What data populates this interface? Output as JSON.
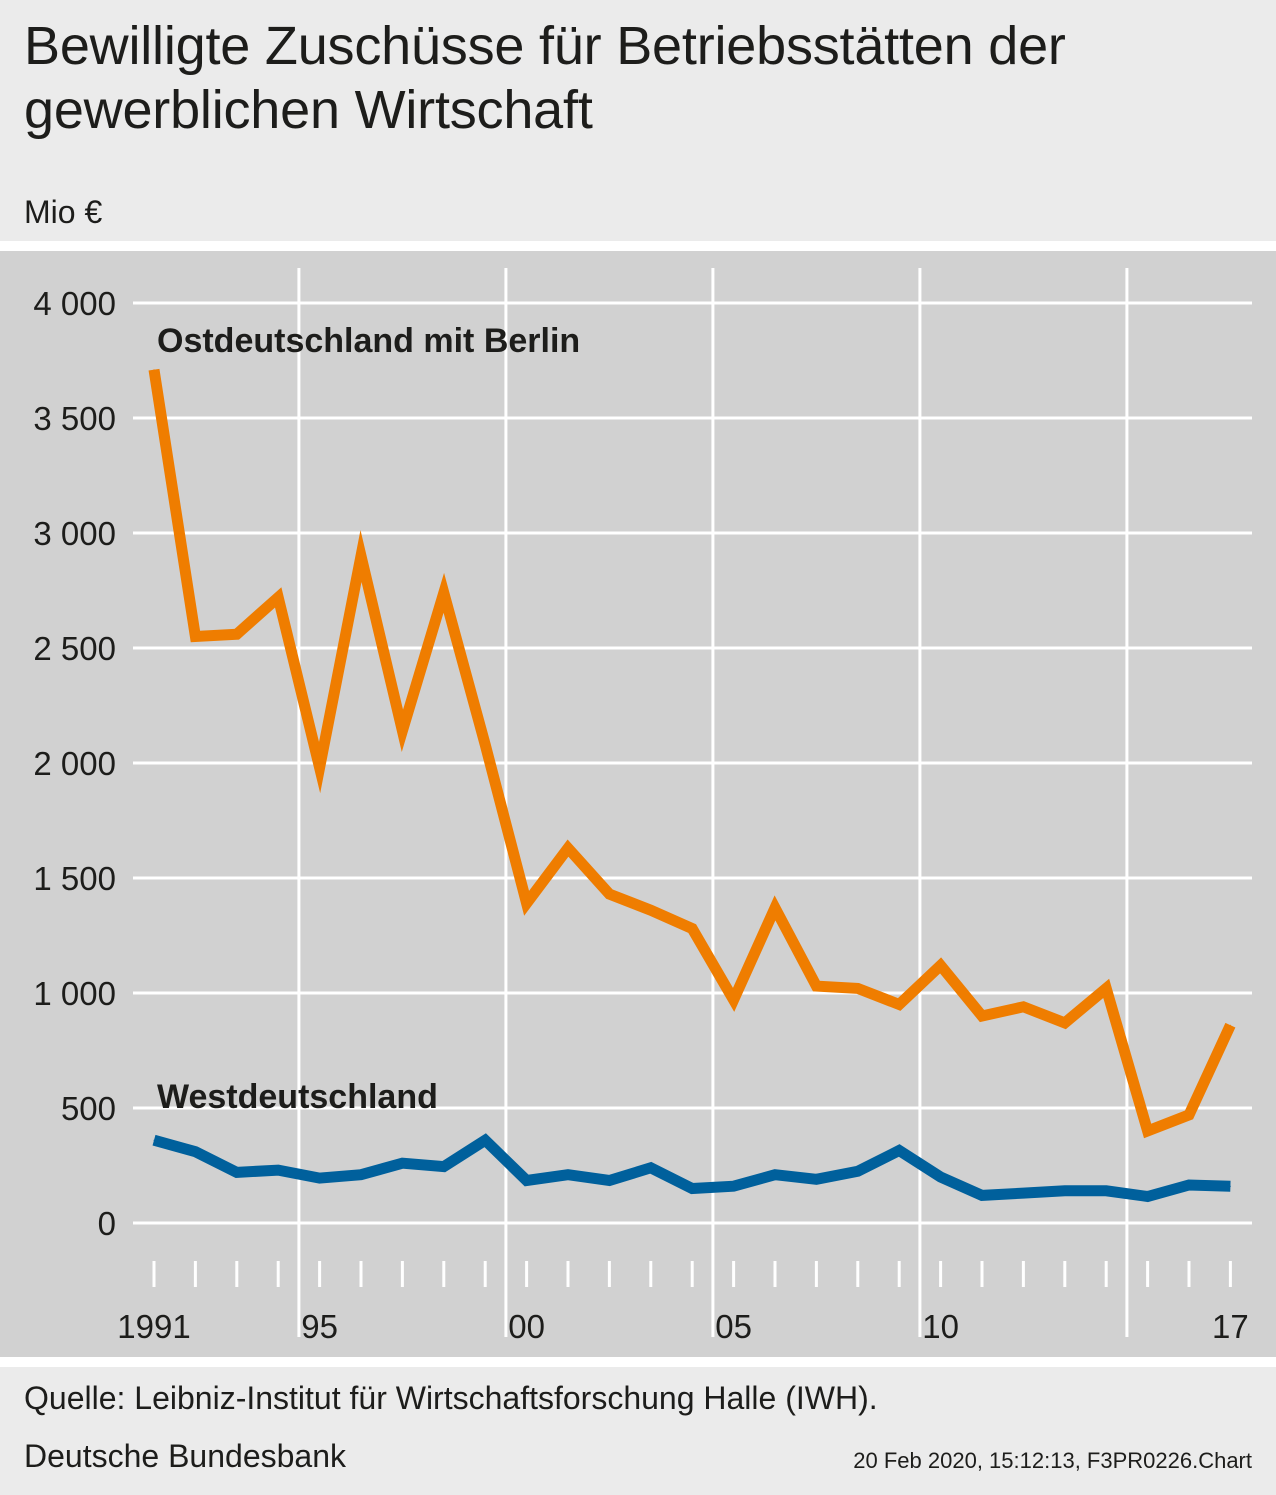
{
  "header": {
    "title": "Bewilligte Zuschüsse für Betriebsstätten der gewerblichen Wirtschaft",
    "unit": "Mio €"
  },
  "footer": {
    "source": "Quelle: Leibniz-Institut für Wirtschaftsforschung Halle (IWH).",
    "publisher": "Deutsche Bundesbank",
    "stamp": "20 Feb 2020, 15:12:13, F3PR0226.Chart"
  },
  "colors": {
    "background": "#ebebeb",
    "plot_background": "#d1d1d1",
    "grid": "#ffffff",
    "east": "#ef7d00",
    "west": "#00609c"
  },
  "chart_data": {
    "type": "line",
    "title": "Bewilligte Zuschüsse für Betriebsstätten der gewerblichen Wirtschaft",
    "ylabel": "Mio €",
    "xlabel": "",
    "ylim": [
      0,
      4000
    ],
    "xlim": [
      1990.5,
      2017.5
    ],
    "y_ticks": [
      {
        "value": 0,
        "label": "0"
      },
      {
        "value": 500,
        "label": "500"
      },
      {
        "value": 1000,
        "label": "1 000"
      },
      {
        "value": 1500,
        "label": "1 500"
      },
      {
        "value": 2000,
        "label": "2 000"
      },
      {
        "value": 2500,
        "label": "2 500"
      },
      {
        "value": 3000,
        "label": "3 000"
      },
      {
        "value": 3500,
        "label": "3 500"
      },
      {
        "value": 4000,
        "label": "4 000"
      }
    ],
    "x_tick_labels": [
      {
        "year": 1991,
        "label": "1991"
      },
      {
        "year": 1995,
        "label": "95"
      },
      {
        "year": 2000,
        "label": "00"
      },
      {
        "year": 2005,
        "label": "05"
      },
      {
        "year": 2010,
        "label": "10"
      },
      {
        "year": 2017,
        "label": "17"
      }
    ],
    "vertical_grid_years": [
      1994.5,
      1999.5,
      2004.5,
      2009.5,
      2014.5
    ],
    "grid": true,
    "x": [
      1991,
      1992,
      1993,
      1994,
      1995,
      1996,
      1997,
      1998,
      1999,
      2000,
      2001,
      2002,
      2003,
      2004,
      2005,
      2006,
      2007,
      2008,
      2009,
      2010,
      2011,
      2012,
      2013,
      2014,
      2015,
      2016,
      2017
    ],
    "series": [
      {
        "name": "Ostdeutschland mit Berlin",
        "color": "#ef7d00",
        "values": [
          3710,
          2550,
          2560,
          2720,
          1980,
          2900,
          2140,
          2740,
          2080,
          1390,
          1630,
          1430,
          1360,
          1280,
          970,
          1370,
          1030,
          1020,
          950,
          1120,
          900,
          940,
          870,
          1020,
          400,
          470,
          860
        ]
      },
      {
        "name": "Westdeutschland",
        "color": "#00609c",
        "values": [
          360,
          310,
          220,
          230,
          195,
          210,
          260,
          245,
          360,
          185,
          210,
          185,
          240,
          150,
          160,
          210,
          190,
          225,
          315,
          200,
          120,
          130,
          140,
          140,
          115,
          165,
          160
        ]
      }
    ]
  }
}
